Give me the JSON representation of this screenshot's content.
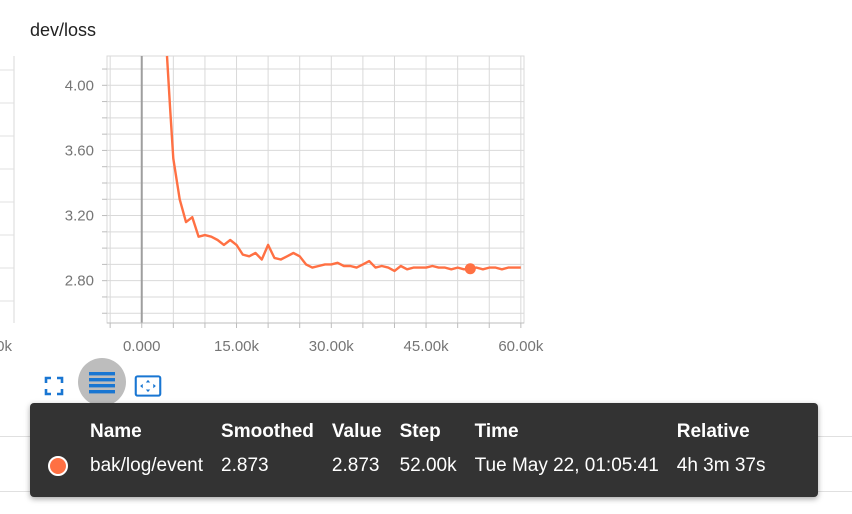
{
  "colors": {
    "series": "#ff7043",
    "toolbar_icon": "#1976d2",
    "tooltip_bg": "#333333"
  },
  "chart_data": {
    "type": "line",
    "title": "dev/loss",
    "x_ticks": [
      "0.000",
      "15.00k",
      "30.00k",
      "45.00k",
      "60.00k"
    ],
    "y_ticks": [
      "2.80",
      "3.20",
      "3.60",
      "4.00"
    ],
    "xlim": [
      -5500,
      60500
    ],
    "ylim": [
      2.54,
      4.18
    ],
    "grid": true,
    "series": [
      {
        "name": "bak/log/event",
        "color": "#ff7043",
        "x": [
          4000,
          4500,
          5000,
          6000,
          7000,
          8000,
          9000,
          10000,
          11000,
          12000,
          13000,
          14000,
          15000,
          16000,
          17000,
          18000,
          19000,
          20000,
          21000,
          22000,
          23000,
          24000,
          25000,
          26000,
          27000,
          28000,
          29000,
          30000,
          31000,
          32000,
          33000,
          34000,
          35000,
          36000,
          37000,
          38000,
          39000,
          40000,
          41000,
          42000,
          43000,
          44000,
          45000,
          46000,
          47000,
          48000,
          49000,
          50000,
          51000,
          52000,
          53000,
          54000,
          55000,
          56000,
          57000,
          58000,
          59000,
          60000
        ],
        "y": [
          4.18,
          3.85,
          3.55,
          3.3,
          3.16,
          3.19,
          3.07,
          3.08,
          3.07,
          3.05,
          3.02,
          3.05,
          3.02,
          2.96,
          2.95,
          2.97,
          2.93,
          3.02,
          2.94,
          2.93,
          2.95,
          2.97,
          2.95,
          2.9,
          2.88,
          2.89,
          2.9,
          2.9,
          2.91,
          2.89,
          2.89,
          2.88,
          2.9,
          2.92,
          2.88,
          2.89,
          2.88,
          2.86,
          2.89,
          2.87,
          2.88,
          2.88,
          2.88,
          2.89,
          2.88,
          2.88,
          2.87,
          2.88,
          2.87,
          2.873,
          2.88,
          2.87,
          2.88,
          2.88,
          2.87,
          2.88,
          2.88,
          2.88
        ],
        "highlight": {
          "x": 52000,
          "y": 2.873
        }
      }
    ]
  },
  "toolbar": {
    "buttons": [
      {
        "name": "expand-icon",
        "active": false
      },
      {
        "name": "log-scale-icon",
        "active": true
      },
      {
        "name": "fit-domain-icon",
        "active": false
      }
    ]
  },
  "tooltip": {
    "headers": {
      "name": "Name",
      "smoothed": "Smoothed",
      "value": "Value",
      "step": "Step",
      "time": "Time",
      "relative": "Relative"
    },
    "row": {
      "name": "bak/log/event",
      "smoothed": "2.873",
      "value": "2.873",
      "step": "52.00k",
      "time": "Tue May 22, 01:05:41",
      "relative": "4h 3m 37s"
    }
  },
  "left_partial_tick": "0k"
}
